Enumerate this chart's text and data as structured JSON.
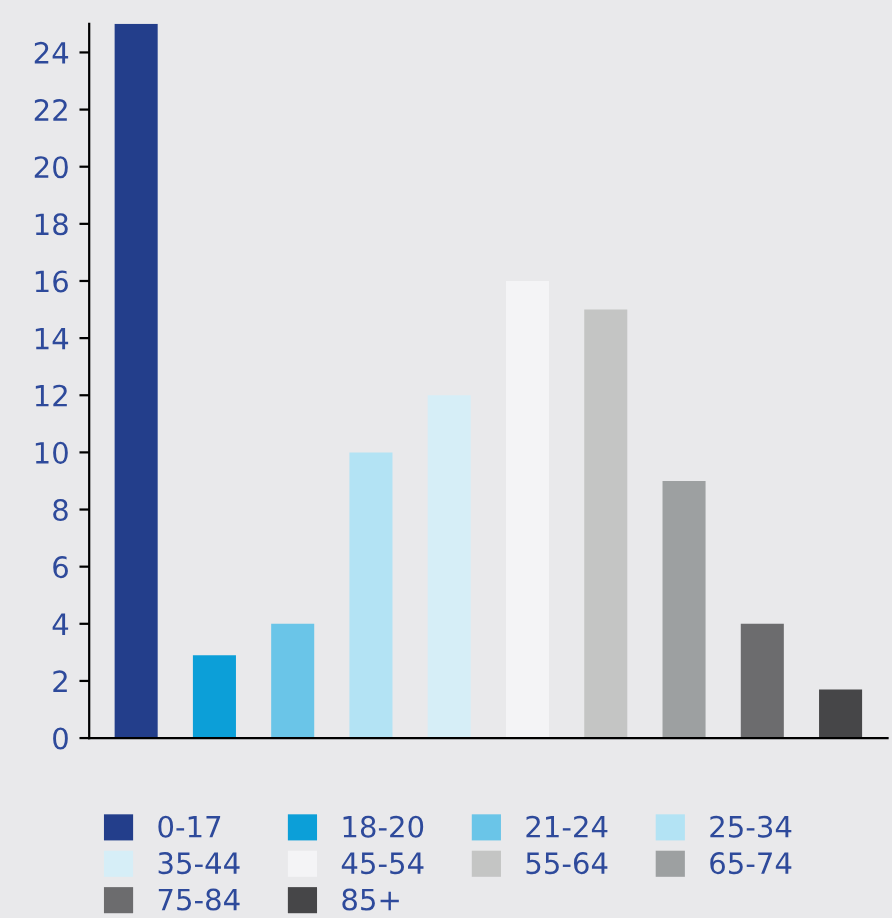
{
  "chart_data": {
    "type": "bar",
    "categories": [
      null,
      null,
      null,
      null,
      null,
      null,
      null,
      null,
      null,
      null
    ],
    "series": [
      {
        "name": "0-17",
        "color": "#233e8b",
        "values": [
          25,
          null,
          null,
          null,
          null,
          null,
          null,
          null,
          null,
          null
        ]
      },
      {
        "name": "18-20",
        "color": "#0c9fd8",
        "values": [
          null,
          2.9,
          null,
          null,
          null,
          null,
          null,
          null,
          null,
          null
        ]
      },
      {
        "name": "21-24",
        "color": "#6ac5e8",
        "values": [
          null,
          null,
          4,
          null,
          null,
          null,
          null,
          null,
          null,
          null
        ]
      },
      {
        "name": "25-34",
        "color": "#b3e3f4",
        "values": [
          null,
          null,
          null,
          10,
          null,
          null,
          null,
          null,
          null,
          null
        ]
      },
      {
        "name": "35-44",
        "color": "#d6eef7",
        "values": [
          null,
          null,
          null,
          null,
          12,
          null,
          null,
          null,
          null,
          null
        ]
      },
      {
        "name": "45-54",
        "color": "#f4f4f6",
        "values": [
          null,
          null,
          null,
          null,
          null,
          16,
          null,
          null,
          null,
          null
        ]
      },
      {
        "name": "55-64",
        "color": "#c4c5c4",
        "values": [
          null,
          null,
          null,
          null,
          null,
          null,
          15,
          null,
          null,
          null
        ]
      },
      {
        "name": "65-74",
        "color": "#9da0a1",
        "values": [
          null,
          null,
          null,
          null,
          null,
          null,
          null,
          9,
          null,
          null
        ]
      },
      {
        "name": "75-84",
        "color": "#6c6c6e",
        "values": [
          null,
          null,
          null,
          null,
          null,
          null,
          null,
          null,
          4,
          null
        ]
      },
      {
        "name": "85+",
        "color": "#464648",
        "values": [
          null,
          null,
          null,
          null,
          null,
          null,
          null,
          null,
          null,
          1.7
        ]
      }
    ],
    "ylim": [
      0,
      25
    ],
    "yticks": [
      0,
      2,
      4,
      6,
      8,
      10,
      12,
      14,
      16,
      18,
      20,
      22,
      24
    ],
    "grid": false,
    "legend": "bottom",
    "tick_labels": "y"
  }
}
